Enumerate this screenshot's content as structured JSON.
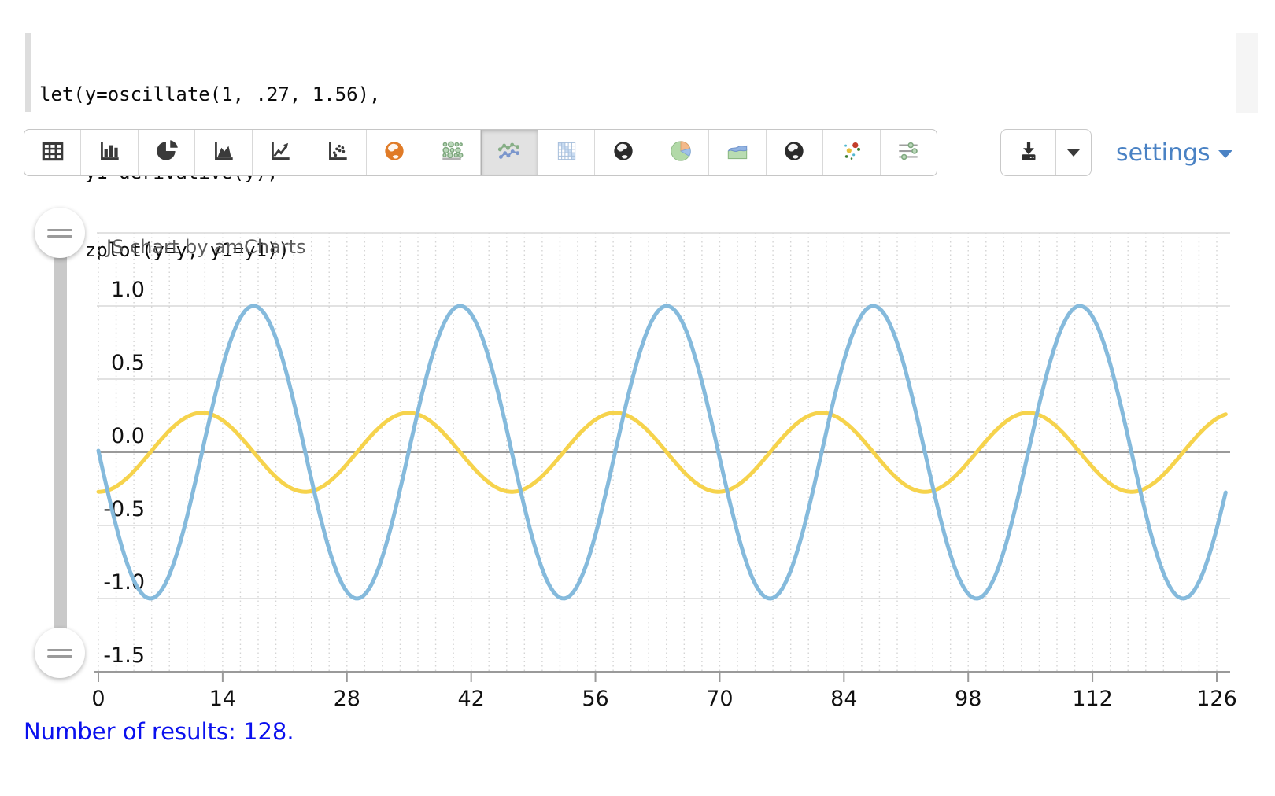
{
  "code_editor": {
    "lines": [
      "let(y=oscillate(1, .27, 1.56),",
      "    y1=derivative(y),",
      "    zplot(y=y, y1=y1))"
    ]
  },
  "toolbar": {
    "buttons": [
      {
        "name": "table",
        "selected": false
      },
      {
        "name": "bar-chart",
        "selected": false
      },
      {
        "name": "pie-chart",
        "selected": false
      },
      {
        "name": "area-chart",
        "selected": false
      },
      {
        "name": "line-chart",
        "selected": false
      },
      {
        "name": "scatter-plot",
        "selected": false
      },
      {
        "name": "globe-orange",
        "selected": false
      },
      {
        "name": "dot-matrix",
        "selected": false
      },
      {
        "name": "line-series",
        "selected": true
      },
      {
        "name": "grid-matrix",
        "selected": false
      },
      {
        "name": "globe-dark",
        "selected": false
      },
      {
        "name": "pie-colored",
        "selected": false
      },
      {
        "name": "area-colored",
        "selected": false
      },
      {
        "name": "globe-dark",
        "selected": false
      },
      {
        "name": "bubble-chart",
        "selected": false
      },
      {
        "name": "sliders",
        "selected": false
      }
    ]
  },
  "actions": {
    "download_icon": "download-icon",
    "download_menu_icon": "chevron-down-icon",
    "settings_label": "settings",
    "settings_color": "#4a82c4"
  },
  "slider": {
    "handle_icon": "drag-handle-icon"
  },
  "chart": {
    "title": "JS chart by amCharts",
    "title_color": "#5c5c5c"
  },
  "chart_data": {
    "type": "line",
    "title": "JS chart by amCharts",
    "x_range": [
      0,
      127
    ],
    "num_points": 128,
    "ylim": [
      -1.5,
      1.5
    ],
    "x_tick_labels": [
      0,
      14,
      28,
      42,
      56,
      70,
      84,
      98,
      112,
      126
    ],
    "y_ticks": [
      {
        "label": "1.0",
        "value": 1.0
      },
      {
        "label": "0.5",
        "value": 0.5
      },
      {
        "label": "0.0",
        "value": 0.0
      },
      {
        "label": "-0.5",
        "value": -0.5
      },
      {
        "label": "-1.0",
        "value": -1.0
      },
      {
        "label": "-1.5",
        "value": -1.5
      }
    ],
    "grid": {
      "horizontal": "solid",
      "vertical": "dotted every 2 x-units",
      "zero_line": "darker gray"
    },
    "legend_position": "none",
    "series": [
      {
        "name": "y",
        "color": "#85badc",
        "fn": "cos",
        "amplitude": 1.0,
        "frequency": 0.27,
        "phase": 1.56,
        "description": "y = cos(0.27x + 1.56), amplitude 1, period ~23.3"
      },
      {
        "name": "y1",
        "color": "#f6d34c",
        "fn": "sin",
        "amplitude": -0.27,
        "frequency": 0.27,
        "phase": 1.56,
        "description": "y1 = derivative of y = -0.27*sin(0.27x + 1.56), amplitude 0.27"
      }
    ]
  },
  "results": {
    "text": "Number of results: 128.",
    "color": "#0a10ee"
  }
}
